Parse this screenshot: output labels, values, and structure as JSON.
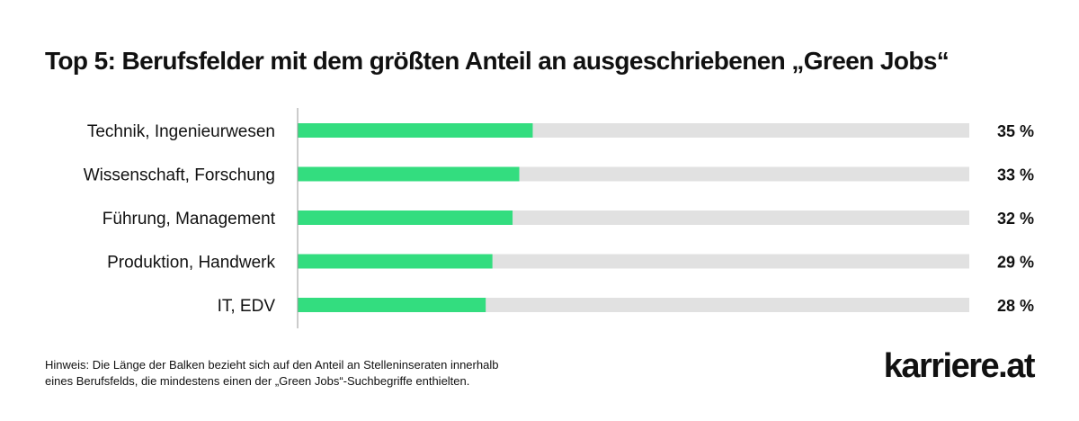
{
  "title": "Top 5: Berufsfelder mit dem größten Anteil an ausgeschriebenen „Green Jobs“",
  "note": {
    "line1": "Hinweis: Die Länge der Balken bezieht sich auf den Anteil an Stelleninseraten innerhalb",
    "line2": "eines Berufsfelds, die mindestens einen der „Green Jobs“-Suchbegriffe enthielten."
  },
  "logo": "karriere.at",
  "colors": {
    "bar": "#33dd7f",
    "track": "#e1e1e1",
    "axis": "#999999"
  },
  "chart_data": {
    "type": "bar",
    "orientation": "horizontal",
    "title": "Top 5: Berufsfelder mit dem größten Anteil an ausgeschriebenen „Green Jobs“",
    "categories": [
      "Technik, Ingenieurwesen",
      "Wissenschaft, Forschung",
      "Führung, Management",
      "Produktion, Handwerk",
      "IT, EDV"
    ],
    "values": [
      35,
      33,
      32,
      29,
      28
    ],
    "value_labels": [
      "35 %",
      "33 %",
      "32 %",
      "29 %",
      "28 %"
    ],
    "unit": "%",
    "xlim": [
      0,
      100
    ]
  }
}
